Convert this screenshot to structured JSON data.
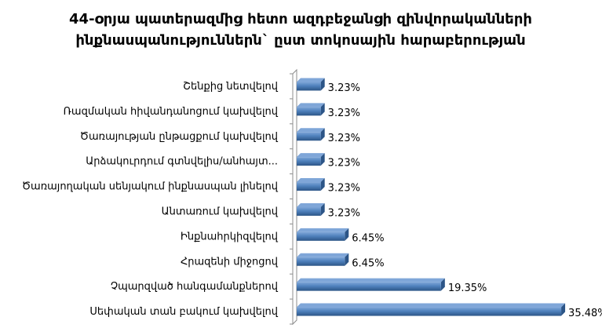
{
  "chart_data": {
    "type": "bar",
    "orientation": "horizontal",
    "title": [
      "44-օրյա պատերազմից հետո ազդբեջանցի զինվորականների",
      "ինքնասպանություններն` ըստ տոկոսային հարաբերության"
    ],
    "categories": [
      "Շենքից նետվելով",
      "Ռազմական հիվանդանոցում կախվելով",
      "Ծառայության ընթացքում կախվելով",
      "Արձակուրդում գտնվելիս/անհայտ...",
      "Ծառայողական սենյակում ինքնասպան լինելով",
      "Անտառում կախվելով",
      "Ինքնահրկիզվելով",
      "Հրազենի միջոցով",
      "Չպարզված հանգամանքներով",
      "Սեփական տան բակում կախվելով"
    ],
    "values": [
      3.23,
      3.23,
      3.23,
      3.23,
      3.23,
      3.23,
      6.45,
      6.45,
      19.35,
      35.48
    ],
    "value_labels": [
      "3.23%",
      "3.23%",
      "3.23%",
      "3.23%",
      "3.23%",
      "3.23%",
      "6.45%",
      "6.45%",
      "19.35%",
      "35.48%"
    ],
    "xlim": [
      0,
      40
    ],
    "grid": false,
    "legend": "none",
    "bar_color": "#4F81BD",
    "bar_color_dark": "#2C5587",
    "bar_color_light": "#7FA6D8"
  }
}
